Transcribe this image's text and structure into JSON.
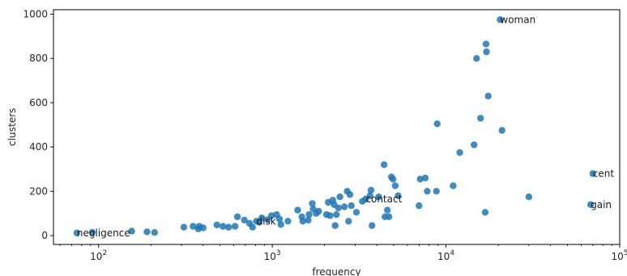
{
  "chart_data": {
    "type": "scatter",
    "xlabel": "frequency",
    "ylabel": "clusters",
    "xscale": "log",
    "xlim": [
      55,
      100000
    ],
    "ylim": [
      -40,
      1020
    ],
    "grid": false,
    "marker_color": "#1f77b4",
    "x_ticks": [
      {
        "value": 100,
        "base": "10",
        "exp": "2"
      },
      {
        "value": 1000,
        "base": "10",
        "exp": "3"
      },
      {
        "value": 10000,
        "base": "10",
        "exp": "4"
      },
      {
        "value": 100000,
        "base": "10",
        "exp": "5"
      }
    ],
    "y_ticks": [
      0,
      200,
      400,
      600,
      800,
      1000
    ],
    "points": [
      {
        "x": 75,
        "y": 12
      },
      {
        "x": 92,
        "y": 15
      },
      {
        "x": 155,
        "y": 20
      },
      {
        "x": 190,
        "y": 17
      },
      {
        "x": 210,
        "y": 14
      },
      {
        "x": 310,
        "y": 38
      },
      {
        "x": 350,
        "y": 42
      },
      {
        "x": 375,
        "y": 30
      },
      {
        "x": 380,
        "y": 42
      },
      {
        "x": 400,
        "y": 35
      },
      {
        "x": 480,
        "y": 48
      },
      {
        "x": 520,
        "y": 42
      },
      {
        "x": 560,
        "y": 38
      },
      {
        "x": 610,
        "y": 42
      },
      {
        "x": 630,
        "y": 85
      },
      {
        "x": 690,
        "y": 70
      },
      {
        "x": 740,
        "y": 55
      },
      {
        "x": 770,
        "y": 38
      },
      {
        "x": 810,
        "y": 65
      },
      {
        "x": 840,
        "y": 60
      },
      {
        "x": 870,
        "y": 80
      },
      {
        "x": 940,
        "y": 72
      },
      {
        "x": 990,
        "y": 90
      },
      {
        "x": 1060,
        "y": 95
      },
      {
        "x": 1100,
        "y": 75
      },
      {
        "x": 1120,
        "y": 50
      },
      {
        "x": 1230,
        "y": 65
      },
      {
        "x": 1400,
        "y": 115
      },
      {
        "x": 1480,
        "y": 85
      },
      {
        "x": 1500,
        "y": 65
      },
      {
        "x": 1610,
        "y": 70
      },
      {
        "x": 1630,
        "y": 95
      },
      {
        "x": 1700,
        "y": 145
      },
      {
        "x": 1720,
        "y": 120
      },
      {
        "x": 1790,
        "y": 100
      },
      {
        "x": 1850,
        "y": 110
      },
      {
        "x": 2050,
        "y": 95
      },
      {
        "x": 2100,
        "y": 150
      },
      {
        "x": 2150,
        "y": 90
      },
      {
        "x": 2230,
        "y": 160
      },
      {
        "x": 2270,
        "y": 140
      },
      {
        "x": 2300,
        "y": 45
      },
      {
        "x": 2340,
        "y": 95
      },
      {
        "x": 2400,
        "y": 125
      },
      {
        "x": 2450,
        "y": 175
      },
      {
        "x": 2600,
        "y": 130
      },
      {
        "x": 2700,
        "y": 200
      },
      {
        "x": 2750,
        "y": 65
      },
      {
        "x": 2800,
        "y": 185
      },
      {
        "x": 2850,
        "y": 135
      },
      {
        "x": 3050,
        "y": 105
      },
      {
        "x": 3300,
        "y": 155
      },
      {
        "x": 3450,
        "y": 165
      },
      {
        "x": 3650,
        "y": 180
      },
      {
        "x": 3700,
        "y": 205
      },
      {
        "x": 3750,
        "y": 45
      },
      {
        "x": 4100,
        "y": 175
      },
      {
        "x": 4400,
        "y": 320
      },
      {
        "x": 4450,
        "y": 85
      },
      {
        "x": 4600,
        "y": 115
      },
      {
        "x": 4700,
        "y": 85
      },
      {
        "x": 4850,
        "y": 265
      },
      {
        "x": 4950,
        "y": 255
      },
      {
        "x": 5100,
        "y": 225
      },
      {
        "x": 5300,
        "y": 180
      },
      {
        "x": 7000,
        "y": 135
      },
      {
        "x": 7100,
        "y": 255
      },
      {
        "x": 7600,
        "y": 260
      },
      {
        "x": 7800,
        "y": 200
      },
      {
        "x": 8800,
        "y": 200
      },
      {
        "x": 8900,
        "y": 505
      },
      {
        "x": 11000,
        "y": 225
      },
      {
        "x": 12000,
        "y": 375
      },
      {
        "x": 14500,
        "y": 410
      },
      {
        "x": 15000,
        "y": 800
      },
      {
        "x": 15800,
        "y": 530
      },
      {
        "x": 16800,
        "y": 105
      },
      {
        "x": 17000,
        "y": 865
      },
      {
        "x": 17100,
        "y": 830
      },
      {
        "x": 17500,
        "y": 630
      },
      {
        "x": 20500,
        "y": 975
      },
      {
        "x": 21000,
        "y": 475
      },
      {
        "x": 30000,
        "y": 175
      },
      {
        "x": 68000,
        "y": 140
      },
      {
        "x": 70000,
        "y": 280
      }
    ],
    "annotations": [
      {
        "text": "woman",
        "x": 20500,
        "y": 975
      },
      {
        "text": "cent",
        "x": 70000,
        "y": 280
      },
      {
        "text": "gain",
        "x": 68000,
        "y": 140
      },
      {
        "text": "contact",
        "x": 3450,
        "y": 165
      },
      {
        "text": "disk",
        "x": 810,
        "y": 65
      },
      {
        "text": "negligence",
        "x": 75,
        "y": 12
      }
    ]
  }
}
